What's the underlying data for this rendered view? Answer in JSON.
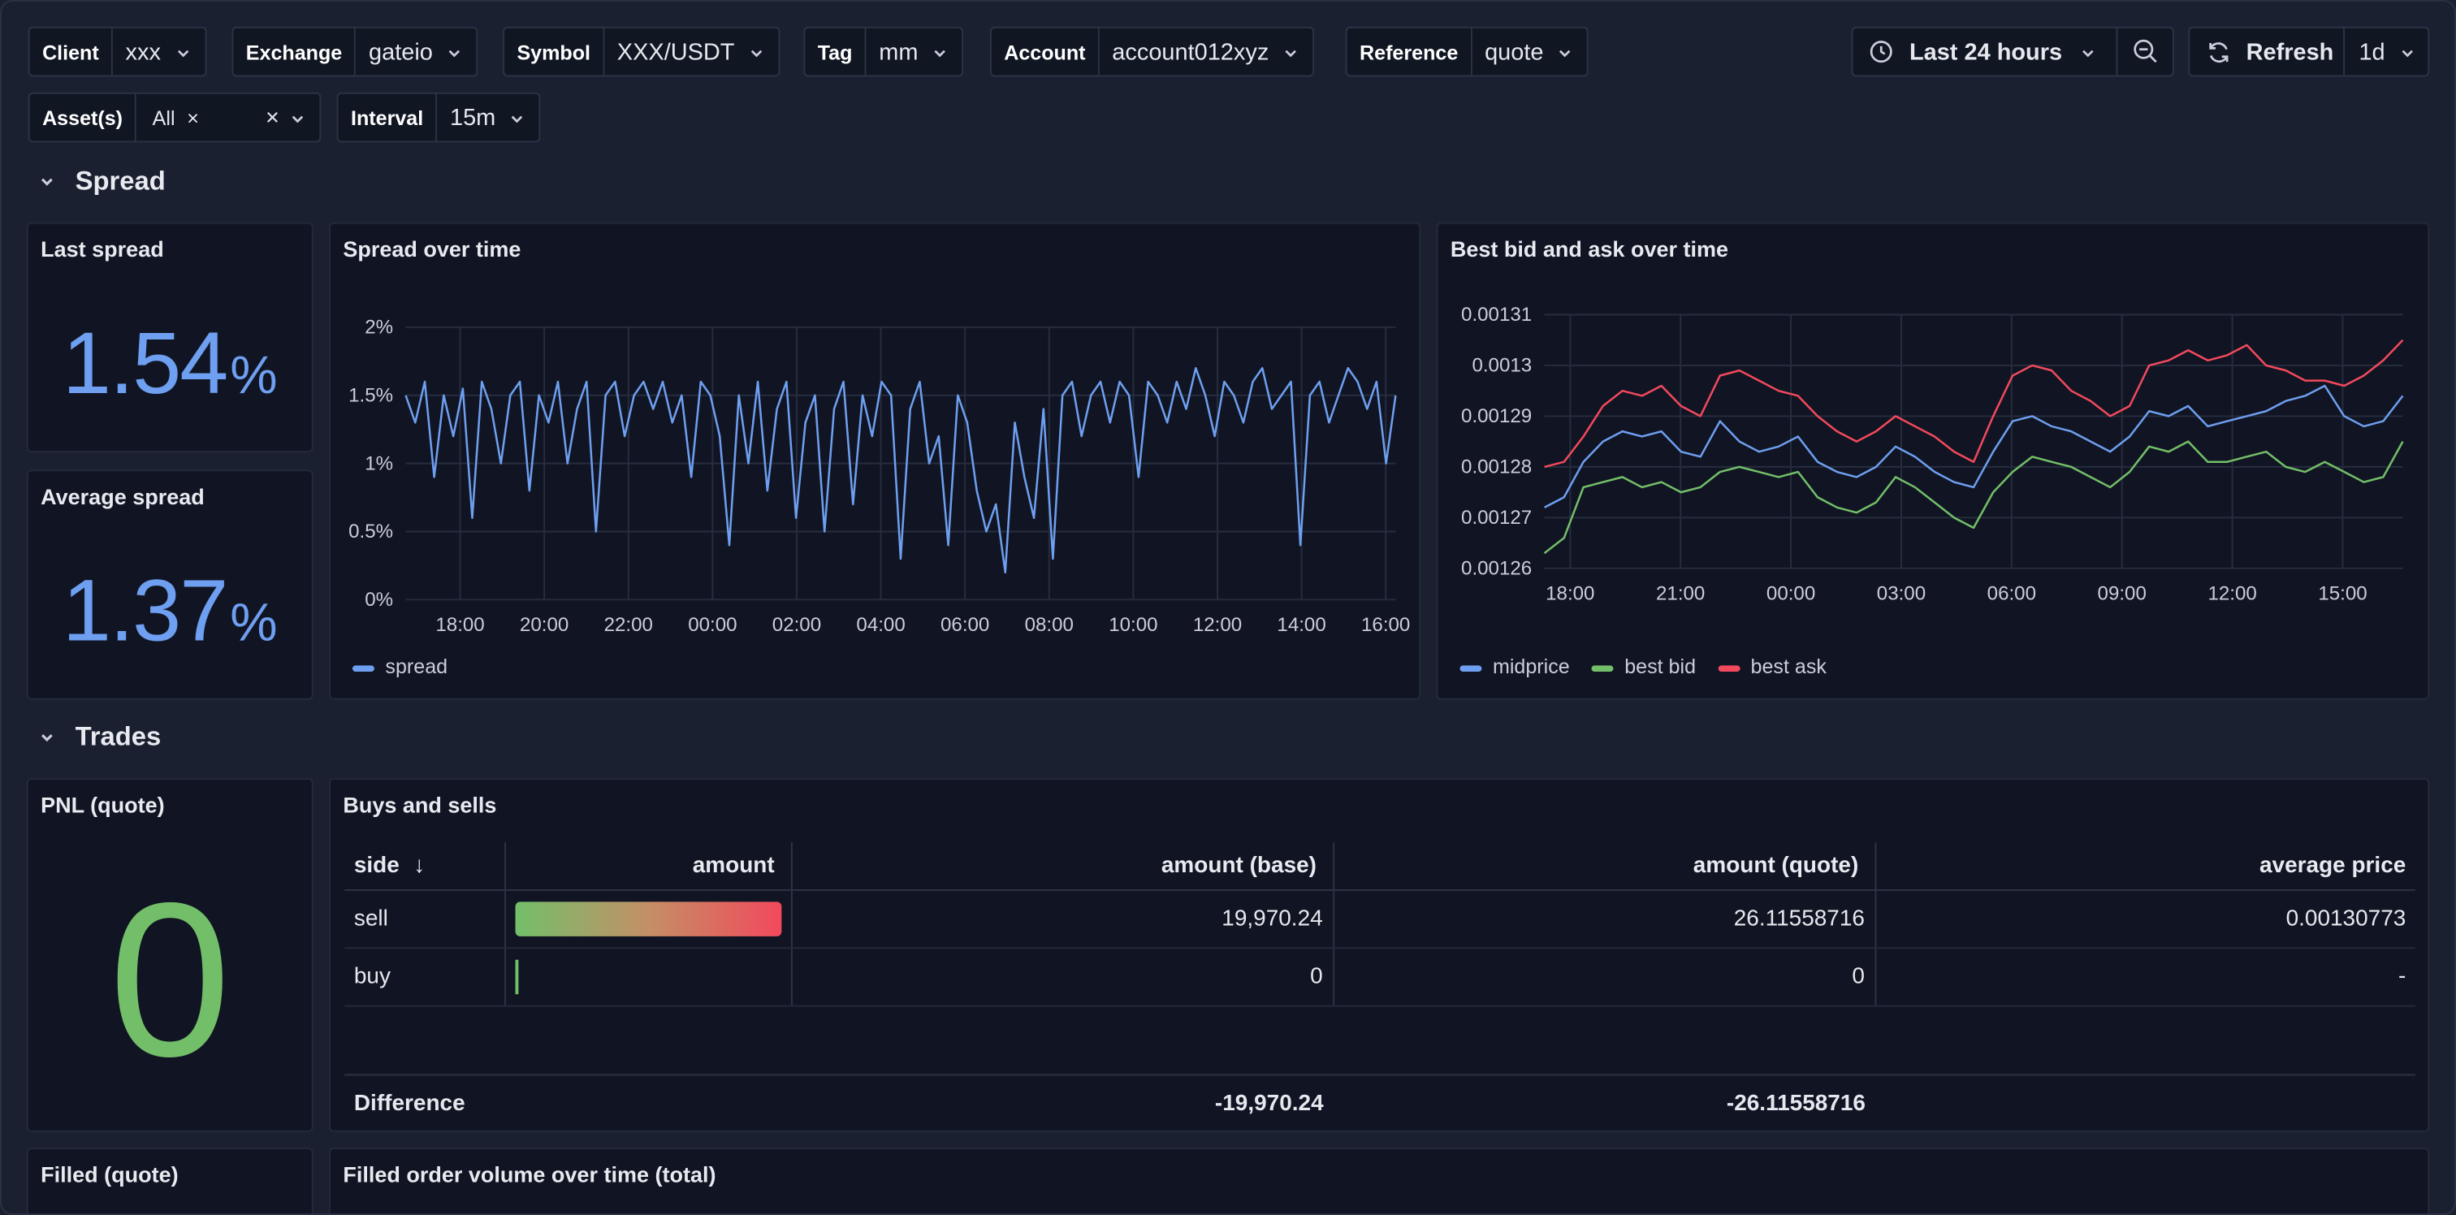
{
  "variables": {
    "client": {
      "label": "Client",
      "value": "xxx"
    },
    "exchange": {
      "label": "Exchange",
      "value": "gateio"
    },
    "symbol": {
      "label": "Symbol",
      "value": "XXX/USDT"
    },
    "tag": {
      "label": "Tag",
      "value": "mm"
    },
    "account": {
      "label": "Account",
      "value": "account012xyz"
    },
    "reference": {
      "label": "Reference",
      "value": "quote"
    },
    "assets": {
      "label": "Asset(s)",
      "chip": "All",
      "chip_remove": "×",
      "clear": "×"
    },
    "interval": {
      "label": "Interval",
      "value": "15m"
    }
  },
  "toolbar": {
    "time_range": "Last 24 hours",
    "refresh_label": "Refresh",
    "refresh_interval": "1d"
  },
  "sections": {
    "spread": "Spread",
    "trades": "Trades"
  },
  "panels": {
    "last_spread": {
      "title": "Last spread",
      "value": "1.54",
      "unit": "%"
    },
    "average_spread": {
      "title": "Average spread",
      "value": "1.37",
      "unit": "%"
    },
    "spread_over_time": {
      "title": "Spread over time",
      "legend": "spread"
    },
    "bid_ask_over_time": {
      "title": "Best bid and ask over time",
      "legend": [
        "midprice",
        "best bid",
        "best ask"
      ]
    },
    "pnl": {
      "title": "PNL (quote)",
      "value": "0"
    },
    "buys_sells": {
      "title": "Buys and sells",
      "sort_icon": "↓",
      "columns": [
        "side",
        "amount",
        "amount (base)",
        "amount (quote)",
        "average price"
      ],
      "rows": [
        {
          "side": "sell",
          "amount_fill": 1.0,
          "base": "19,970.24",
          "quote": "26.11558716",
          "avg": "0.00130773"
        },
        {
          "side": "buy",
          "amount_fill": 0.0,
          "base": "0",
          "quote": "0",
          "avg": "-"
        }
      ],
      "footer": {
        "label": "Difference",
        "base": "-19,970.24",
        "quote": "-26.11558716"
      }
    },
    "filled": {
      "title": "Filled (quote)"
    },
    "filled_volume": {
      "title": "Filled order volume over time (total)"
    }
  },
  "colors": {
    "spread": "#6e9ff0",
    "midprice": "#6e9ff0",
    "best_bid": "#73bf69",
    "best_ask": "#f2495c",
    "pnl": "#73bf69"
  },
  "chart_data": [
    {
      "type": "line",
      "title": "Spread over time",
      "x_ticks": [
        "18:00",
        "20:00",
        "22:00",
        "00:00",
        "02:00",
        "04:00",
        "06:00",
        "08:00",
        "10:00",
        "12:00",
        "14:00",
        "16:00"
      ],
      "y_ticks": [
        "0%",
        "0.5%",
        "1%",
        "1.5%",
        "2%"
      ],
      "ylim": [
        0,
        2
      ],
      "series": [
        {
          "name": "spread",
          "values": [
            1.5,
            1.3,
            1.6,
            0.9,
            1.5,
            1.2,
            1.55,
            0.6,
            1.6,
            1.4,
            1.0,
            1.5,
            1.6,
            0.8,
            1.5,
            1.3,
            1.6,
            1.0,
            1.4,
            1.6,
            0.5,
            1.5,
            1.6,
            1.2,
            1.5,
            1.6,
            1.4,
            1.6,
            1.3,
            1.5,
            0.9,
            1.6,
            1.5,
            1.2,
            0.4,
            1.5,
            1.0,
            1.6,
            0.8,
            1.4,
            1.6,
            0.6,
            1.3,
            1.5,
            0.5,
            1.4,
            1.6,
            0.7,
            1.5,
            1.2,
            1.6,
            1.5,
            0.3,
            1.4,
            1.6,
            1.0,
            1.2,
            0.4,
            1.5,
            1.3,
            0.8,
            0.5,
            0.7,
            0.2,
            1.3,
            0.9,
            0.6,
            1.4,
            0.3,
            1.5,
            1.6,
            1.2,
            1.5,
            1.6,
            1.3,
            1.6,
            1.5,
            0.9,
            1.6,
            1.5,
            1.3,
            1.6,
            1.4,
            1.7,
            1.5,
            1.2,
            1.6,
            1.5,
            1.3,
            1.6,
            1.7,
            1.4,
            1.5,
            1.6,
            0.4,
            1.5,
            1.6,
            1.3,
            1.5,
            1.7,
            1.6,
            1.4,
            1.6,
            1.0,
            1.5
          ]
        }
      ]
    },
    {
      "type": "line",
      "title": "Best bid and ask over time",
      "x_ticks": [
        "18:00",
        "21:00",
        "00:00",
        "03:00",
        "06:00",
        "09:00",
        "12:00",
        "15:00"
      ],
      "y_ticks": [
        "0.00126",
        "0.00127",
        "0.00128",
        "0.00129",
        "0.0013",
        "0.00131"
      ],
      "ylim": [
        0.00126,
        0.00131
      ],
      "series": [
        {
          "name": "midprice",
          "values": [
            0.001272,
            0.001274,
            0.001281,
            0.001285,
            0.001287,
            0.001286,
            0.001287,
            0.001283,
            0.001282,
            0.001289,
            0.001285,
            0.001283,
            0.001284,
            0.001286,
            0.001281,
            0.001279,
            0.001278,
            0.00128,
            0.001284,
            0.001282,
            0.001279,
            0.001277,
            0.001276,
            0.001283,
            0.001289,
            0.00129,
            0.001288,
            0.001287,
            0.001285,
            0.001283,
            0.001286,
            0.001291,
            0.00129,
            0.001292,
            0.001288,
            0.001289,
            0.00129,
            0.001291,
            0.001293,
            0.001294,
            0.001296,
            0.00129,
            0.001288,
            0.001289,
            0.001294
          ]
        },
        {
          "name": "best bid",
          "values": [
            0.001263,
            0.001266,
            0.001276,
            0.001277,
            0.001278,
            0.001276,
            0.001277,
            0.001275,
            0.001276,
            0.001279,
            0.00128,
            0.001279,
            0.001278,
            0.001279,
            0.001274,
            0.001272,
            0.001271,
            0.001273,
            0.001278,
            0.001276,
            0.001273,
            0.00127,
            0.001268,
            0.001275,
            0.001279,
            0.001282,
            0.001281,
            0.00128,
            0.001278,
            0.001276,
            0.001279,
            0.001284,
            0.001283,
            0.001285,
            0.001281,
            0.001281,
            0.001282,
            0.001283,
            0.00128,
            0.001279,
            0.001281,
            0.001279,
            0.001277,
            0.001278,
            0.001285
          ]
        },
        {
          "name": "best ask",
          "values": [
            0.00128,
            0.001281,
            0.001286,
            0.001292,
            0.001295,
            0.001294,
            0.001296,
            0.001292,
            0.00129,
            0.001298,
            0.001299,
            0.001297,
            0.001295,
            0.001294,
            0.00129,
            0.001287,
            0.001285,
            0.001287,
            0.00129,
            0.001288,
            0.001286,
            0.001283,
            0.001281,
            0.00129,
            0.001298,
            0.0013,
            0.001299,
            0.001295,
            0.001293,
            0.00129,
            0.001292,
            0.0013,
            0.001301,
            0.001303,
            0.001301,
            0.001302,
            0.001304,
            0.0013,
            0.001299,
            0.001297,
            0.001297,
            0.001296,
            0.001298,
            0.001301,
            0.001305
          ]
        }
      ]
    }
  ]
}
